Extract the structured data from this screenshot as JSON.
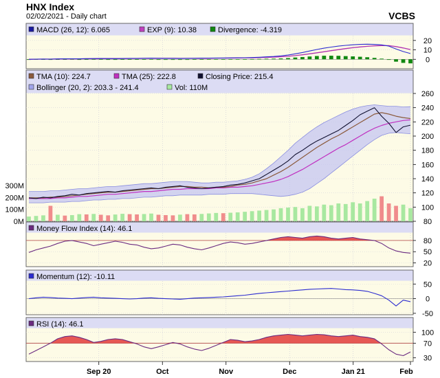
{
  "header": {
    "title": "HNX Index",
    "subtitle": "02/02/2021 - Daily chart",
    "brand": "VCBS"
  },
  "colors": {
    "panel_bg": "#fdfbe6",
    "legend_bg": "#dcdcf4",
    "macd": "#2b2bd0",
    "exp": "#b030b0",
    "div_up": "#118811",
    "div_down": "#118811",
    "tma10": "#8b5a3c",
    "tma25": "#c030c0",
    "close": "#101030",
    "band_fill": "#c4c6f2",
    "band_line": "#8a8ee0",
    "vol_up": "#a8e8a0",
    "vol_down": "#f08c8c",
    "mfi_line": "#6a2a80",
    "mfi_fill": "#e03030",
    "mom_line": "#2b2bd0",
    "rsi_line": "#6a2a80",
    "rsi_fill": "#e03030",
    "ref_line": "#b04040"
  },
  "chart_data": [
    {
      "type": "bar",
      "name": "macd-panel",
      "legend": [
        {
          "label": "MACD (26, 12): 6.065",
          "swatch": "#1a1aa0"
        },
        {
          "label": "EXP (9): 10.38",
          "swatch": "#c040c0"
        },
        {
          "label": "Divergence: -4.319",
          "swatch": "#118811"
        }
      ],
      "ylim": [
        -10,
        25
      ],
      "yticks": [
        0,
        10,
        20
      ],
      "macd": [
        0,
        0.2,
        0.3,
        0.2,
        0.4,
        0.5,
        0.6,
        0.5,
        0.7,
        0.8,
        0.9,
        0.8,
        0.7,
        0.9,
        1.0,
        1.0,
        1.1,
        1.2,
        1.1,
        1.0,
        1.0,
        0.9,
        1.0,
        1.1,
        1.2,
        1.3,
        1.4,
        1.4,
        1.5,
        1.6,
        1.7,
        1.9,
        2.2,
        2.6,
        3.0,
        3.6,
        4.5,
        5.8,
        7.2,
        8.8,
        10.4,
        11.8,
        13.0,
        14.0,
        14.8,
        15.4,
        15.8,
        16.0,
        15.8,
        15.3,
        14.0,
        11.0,
        8.2,
        6.1
      ],
      "exp": [
        0,
        0.1,
        0.2,
        0.2,
        0.3,
        0.4,
        0.4,
        0.5,
        0.6,
        0.6,
        0.7,
        0.8,
        0.8,
        0.8,
        0.9,
        0.9,
        1.0,
        1.0,
        1.1,
        1.1,
        1.1,
        1.0,
        1.0,
        1.0,
        1.1,
        1.1,
        1.2,
        1.3,
        1.3,
        1.4,
        1.5,
        1.6,
        1.8,
        2.0,
        2.3,
        2.7,
        3.2,
        3.9,
        4.8,
        5.8,
        6.9,
        8.0,
        9.2,
        10.3,
        11.4,
        12.3,
        13.1,
        13.8,
        14.3,
        14.6,
        14.5,
        13.5,
        12.0,
        10.38
      ],
      "divergence": [
        0,
        0.1,
        0.1,
        0,
        0.1,
        0.1,
        0.2,
        0,
        0.1,
        0.2,
        0.2,
        0,
        -0.1,
        0.1,
        0.1,
        0.1,
        0.1,
        0.2,
        0,
        -0.1,
        -0.1,
        -0.1,
        0,
        0.1,
        0.1,
        0.2,
        0.2,
        0.1,
        0.2,
        0.2,
        0.2,
        0.3,
        0.4,
        0.6,
        0.7,
        0.9,
        1.3,
        1.9,
        2.4,
        3.0,
        3.5,
        3.8,
        3.8,
        3.7,
        3.4,
        3.1,
        2.7,
        2.2,
        1.5,
        0.7,
        -0.5,
        -2.5,
        -3.8,
        -4.319
      ]
    },
    {
      "type": "line",
      "name": "price-panel",
      "legend": [
        {
          "label": "TMA (10): 224.7",
          "swatch": "#8b5a3c"
        },
        {
          "label": "TMA (25): 222.8",
          "swatch": "#c030c0"
        },
        {
          "label": "Closing Price: 215.4",
          "swatch": "#101030"
        },
        {
          "label": "Bollinger (20, 2): 203.3 - 241.4",
          "swatch": "#a0a4ec"
        },
        {
          "label": "Vol: 110M",
          "swatch": "#a8e8a0"
        }
      ],
      "ylim": [
        80,
        260
      ],
      "yticks": [
        80,
        100,
        120,
        140,
        160,
        180,
        200,
        220,
        240,
        260
      ],
      "vol_ylim": [
        0,
        300
      ],
      "vol_ticks": [
        {
          "v": 0,
          "label": "0M"
        },
        {
          "v": 100,
          "label": "100M"
        },
        {
          "v": 200,
          "label": "200M"
        },
        {
          "v": 300,
          "label": "300M"
        }
      ],
      "close": [
        113,
        112,
        114,
        113,
        115,
        116,
        118,
        117,
        119,
        120,
        121,
        122,
        121,
        123,
        124,
        125,
        126,
        127,
        126,
        128,
        129,
        130,
        128,
        127,
        126,
        127,
        128,
        129,
        131,
        132,
        134,
        137,
        140,
        146,
        152,
        158,
        165,
        174,
        180,
        187,
        193,
        198,
        203,
        208,
        215,
        222,
        230,
        235,
        240,
        228,
        218,
        205,
        213,
        215.4
      ],
      "tma10": [
        113,
        113,
        113,
        114,
        114,
        115,
        116,
        117,
        118,
        119,
        120,
        121,
        121,
        122,
        123,
        124,
        125,
        126,
        126,
        127,
        128,
        129,
        129,
        128,
        128,
        127,
        128,
        128,
        129,
        131,
        132,
        134,
        137,
        140,
        145,
        150,
        156,
        163,
        170,
        177,
        184,
        190,
        196,
        201,
        207,
        213,
        219,
        225,
        231,
        233,
        231,
        228,
        226,
        224.7
      ],
      "tma25": [
        112,
        112,
        112,
        112,
        113,
        113,
        114,
        115,
        115,
        116,
        117,
        118,
        118,
        119,
        120,
        121,
        122,
        122,
        123,
        124,
        125,
        125,
        126,
        126,
        126,
        126,
        127,
        127,
        128,
        128,
        129,
        130,
        132,
        134,
        136,
        139,
        143,
        148,
        153,
        159,
        165,
        171,
        177,
        183,
        188,
        194,
        200,
        206,
        211,
        215,
        218,
        220,
        222,
        222.8
      ],
      "bb_upper": [
        122,
        122,
        122,
        123,
        123,
        124,
        125,
        126,
        126,
        127,
        128,
        129,
        129,
        130,
        131,
        132,
        133,
        133,
        134,
        135,
        136,
        136,
        136,
        135,
        134,
        134,
        135,
        135,
        136,
        137,
        139,
        142,
        147,
        154,
        162,
        171,
        180,
        190,
        198,
        206,
        213,
        219,
        224,
        229,
        234,
        238,
        241,
        243,
        244,
        243,
        242,
        242,
        241,
        241.4
      ],
      "bb_lower": [
        106,
        106,
        106,
        107,
        107,
        107,
        108,
        108,
        109,
        110,
        110,
        111,
        111,
        112,
        112,
        113,
        114,
        114,
        115,
        116,
        116,
        117,
        117,
        117,
        117,
        118,
        118,
        118,
        119,
        119,
        119,
        119,
        118,
        117,
        116,
        115,
        116,
        118,
        121,
        126,
        133,
        140,
        148,
        156,
        164,
        172,
        180,
        188,
        195,
        201,
        204,
        205,
        204,
        203.3
      ],
      "volume": [
        40,
        45,
        50,
        130,
        55,
        48,
        52,
        60,
        58,
        62,
        55,
        50,
        57,
        63,
        60,
        58,
        61,
        65,
        55,
        52,
        50,
        56,
        60,
        58,
        62,
        66,
        70,
        68,
        72,
        75,
        80,
        85,
        90,
        95,
        100,
        110,
        115,
        120,
        110,
        130,
        125,
        140,
        135,
        150,
        145,
        160,
        150,
        170,
        190,
        210,
        150,
        130,
        140,
        110
      ],
      "volume_down": [
        false,
        false,
        false,
        true,
        false,
        true,
        false,
        false,
        true,
        false,
        true,
        true,
        false,
        false,
        true,
        true,
        false,
        false,
        true,
        true,
        true,
        false,
        true,
        true,
        false,
        false,
        false,
        true,
        false,
        false,
        false,
        false,
        false,
        false,
        false,
        false,
        false,
        false,
        false,
        false,
        false,
        false,
        false,
        false,
        false,
        false,
        false,
        false,
        false,
        true,
        true,
        true,
        false,
        false
      ]
    },
    {
      "type": "area",
      "name": "mfi-panel",
      "legend": [
        {
          "label": "Money Flow Index (14): 46.1",
          "swatch": "#6a2a80"
        }
      ],
      "ylim": [
        10,
        100
      ],
      "yticks": [
        20,
        50,
        80
      ],
      "threshold": 80,
      "values": [
        48,
        55,
        60,
        65,
        72,
        78,
        80,
        76,
        72,
        66,
        70,
        74,
        78,
        75,
        70,
        68,
        62,
        58,
        60,
        65,
        70,
        68,
        62,
        58,
        55,
        60,
        66,
        72,
        76,
        74,
        70,
        72,
        76,
        80,
        84,
        88,
        90,
        88,
        86,
        90,
        92,
        90,
        86,
        84,
        86,
        88,
        84,
        82,
        80,
        72,
        60,
        52,
        48,
        46.1
      ]
    },
    {
      "type": "line",
      "name": "momentum-panel",
      "legend": [
        {
          "label": "Momentum (12): -10.11",
          "swatch": "#2b2bd0"
        }
      ],
      "ylim": [
        -55,
        60
      ],
      "yticks": [
        -50,
        0,
        50
      ],
      "zero": 0,
      "values": [
        0,
        3,
        5,
        4,
        2,
        1,
        0,
        2,
        4,
        5,
        3,
        2,
        1,
        0,
        -1,
        0,
        2,
        3,
        1,
        0,
        -1,
        -2,
        0,
        2,
        3,
        4,
        5,
        6,
        8,
        10,
        12,
        15,
        18,
        20,
        22,
        24,
        26,
        28,
        30,
        32,
        33,
        34,
        35,
        33,
        31,
        30,
        28,
        25,
        18,
        10,
        -5,
        -25,
        -5,
        -10.11
      ]
    },
    {
      "type": "area",
      "name": "rsi-panel",
      "legend": [
        {
          "label": "RSI (14): 46.1",
          "swatch": "#6a2a80"
        }
      ],
      "ylim": [
        20,
        110
      ],
      "yticks": [
        30,
        70,
        100
      ],
      "threshold": 70,
      "values": [
        40,
        50,
        60,
        70,
        82,
        88,
        90,
        86,
        80,
        72,
        75,
        80,
        82,
        80,
        74,
        68,
        60,
        55,
        60,
        66,
        72,
        68,
        60,
        54,
        50,
        56,
        64,
        72,
        80,
        78,
        74,
        76,
        80,
        86,
        90,
        92,
        94,
        92,
        90,
        92,
        94,
        93,
        90,
        88,
        90,
        92,
        88,
        86,
        82,
        68,
        52,
        40,
        36,
        46.1
      ],
      "x_labels": [
        {
          "i": 11,
          "label": "Sep 20"
        },
        {
          "i": 21,
          "label": "Oct"
        },
        {
          "i": 31,
          "label": "Nov"
        },
        {
          "i": 41,
          "label": "Dec"
        },
        {
          "i": 51,
          "label": "Jan 21"
        },
        {
          "i": 60,
          "label": "Feb"
        }
      ]
    }
  ]
}
